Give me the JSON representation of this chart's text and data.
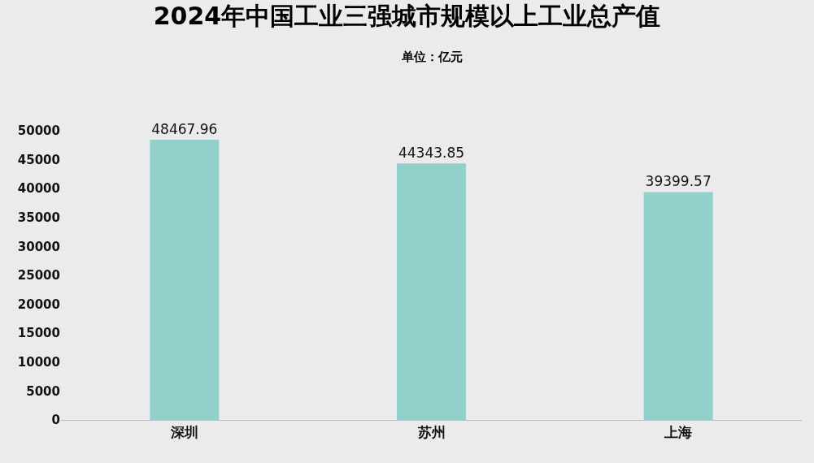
{
  "chart_data": {
    "type": "bar",
    "title": "2024年中国工业三强城市规模以上工业总产值",
    "subtitle": "单位：亿元",
    "categories": [
      "深圳",
      "苏州",
      "上海"
    ],
    "values": [
      48467.96,
      44343.85,
      39399.57
    ],
    "color": "#92d0cc",
    "ylim": [
      0,
      50000
    ],
    "yticks": [
      0,
      5000,
      10000,
      15000,
      20000,
      25000,
      30000,
      35000,
      40000,
      45000,
      50000
    ],
    "data_labels": true,
    "grid": false
  }
}
